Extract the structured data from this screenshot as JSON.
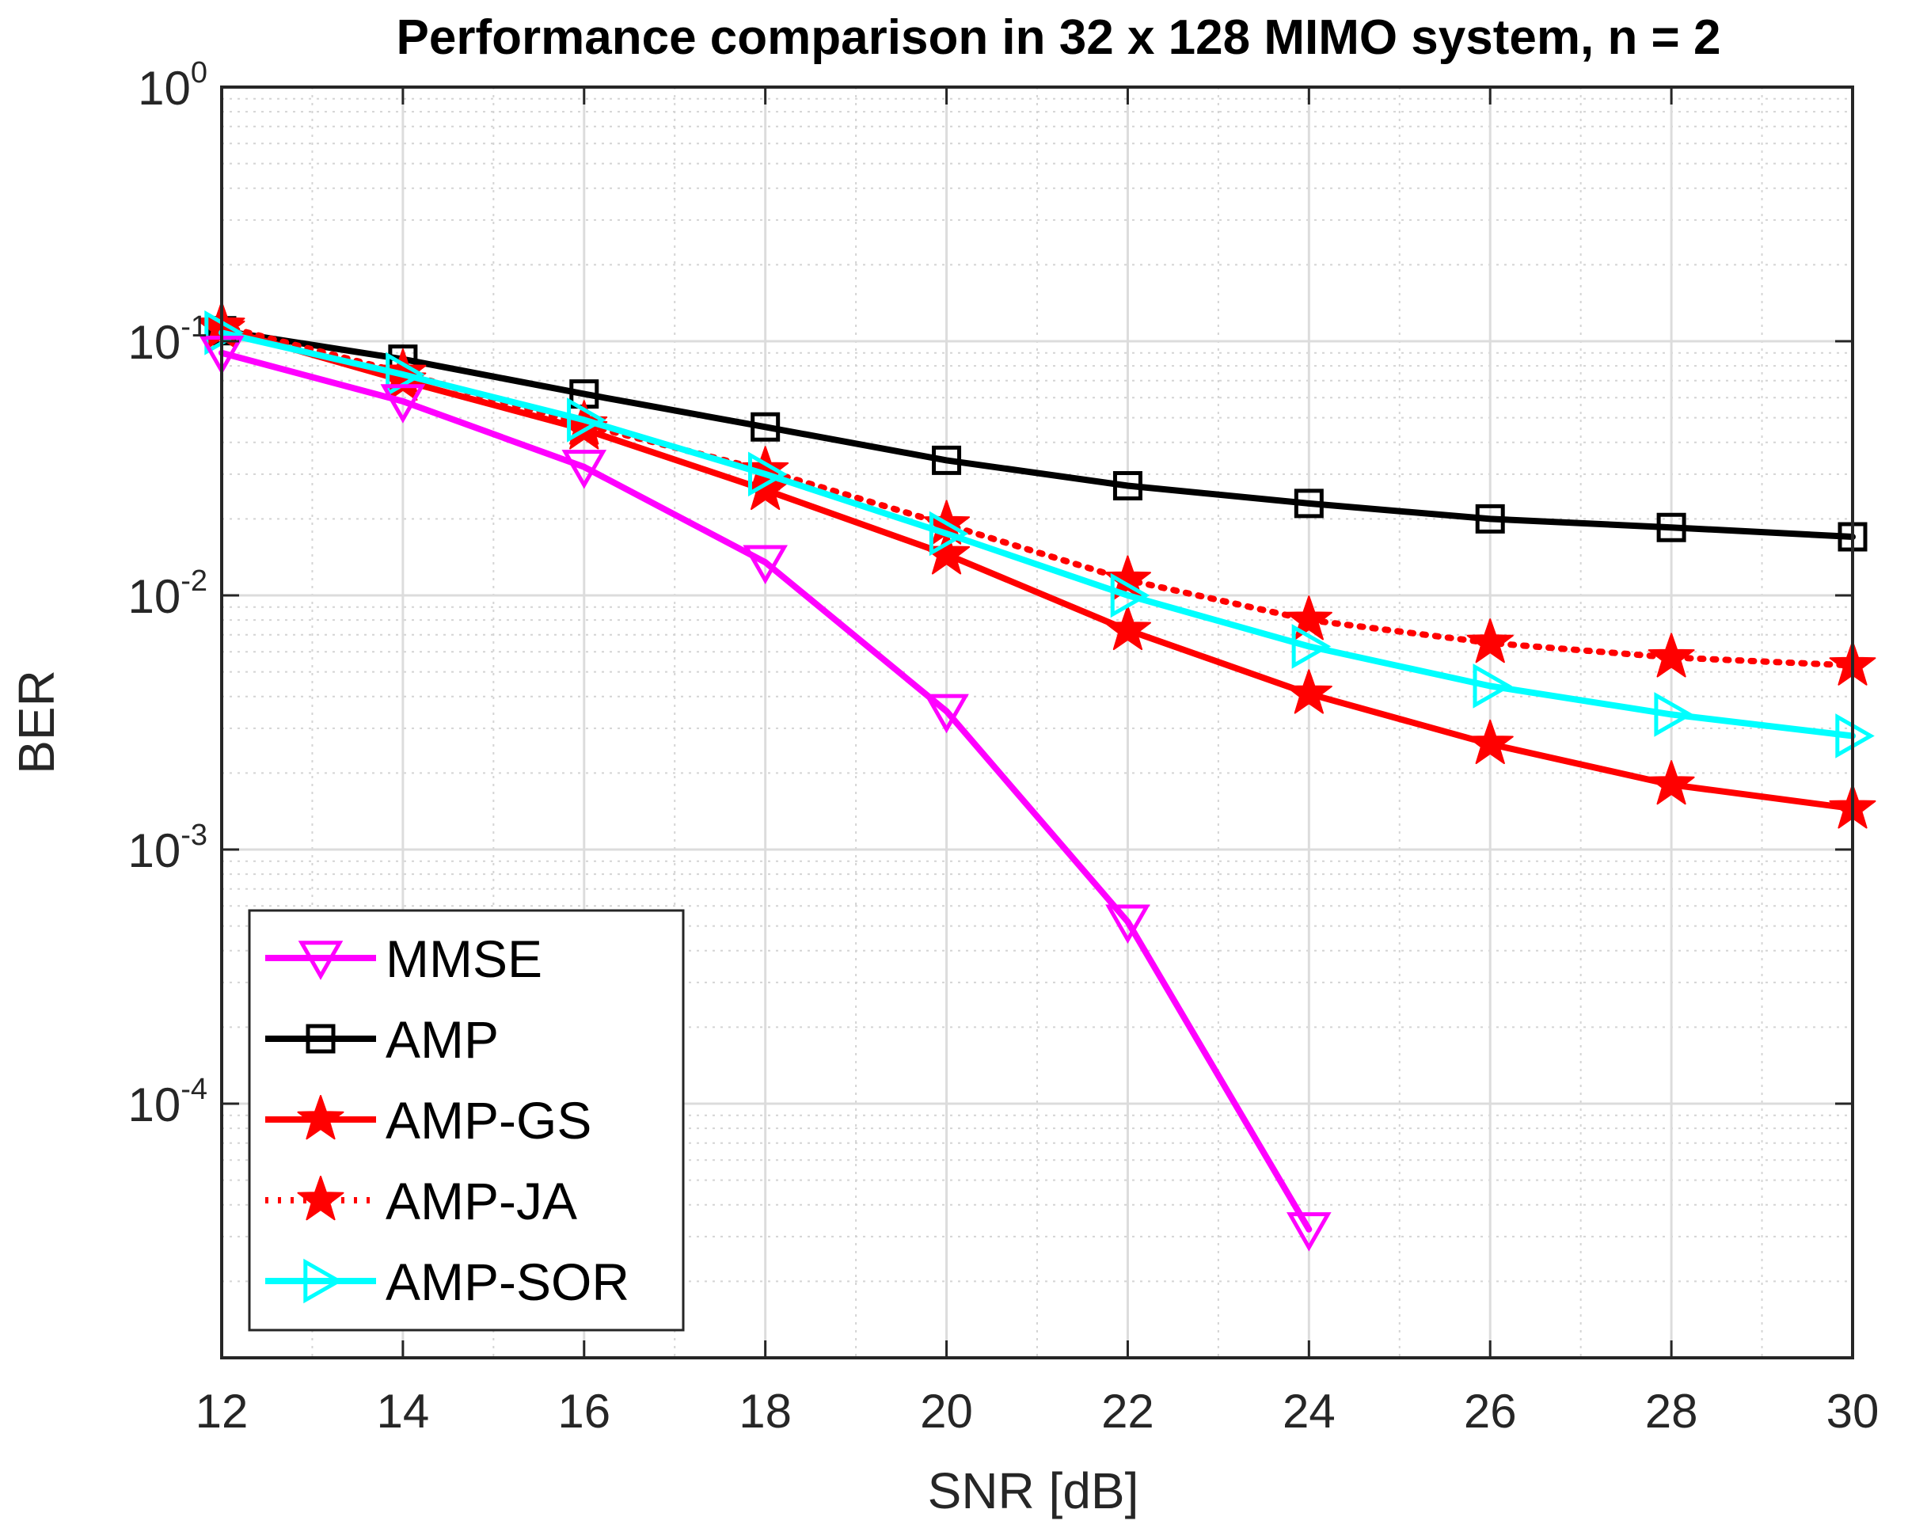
{
  "chart_data": {
    "type": "line",
    "title": "Performance comparison in 32 x 128 MIMO system, n = 2",
    "xlabel": "SNR [dB]",
    "ylabel": "BER",
    "x": [
      12,
      14,
      16,
      18,
      20,
      22,
      24,
      26,
      28,
      30
    ],
    "xlim": [
      12,
      30
    ],
    "ylim": [
      1e-05,
      1
    ],
    "yscale": "log",
    "grid": true,
    "minor_grid": true,
    "xticks": [
      "12",
      "14",
      "16",
      "18",
      "20",
      "22",
      "24",
      "26",
      "28",
      "30"
    ],
    "yticks": [
      {
        "base": "10",
        "exp": "0"
      },
      {
        "base": "10",
        "exp": "-1"
      },
      {
        "base": "10",
        "exp": "-2"
      },
      {
        "base": "10",
        "exp": "-3"
      },
      {
        "base": "10",
        "exp": "-4"
      }
    ],
    "legend_location": "bottom-left",
    "series": [
      {
        "name": "MMSE",
        "color": "#ff00ff",
        "marker": "triangle-down",
        "line": "solid",
        "values": [
          0.09,
          0.058,
          0.032,
          0.0135,
          0.0035,
          0.00052,
          3.2e-05,
          null,
          null,
          null
        ]
      },
      {
        "name": "AMP",
        "color": "#000000",
        "marker": "square",
        "line": "solid",
        "values": [
          0.11,
          0.085,
          0.062,
          0.046,
          0.034,
          0.027,
          0.023,
          0.02,
          0.0185,
          0.017
        ]
      },
      {
        "name": "AMP-GS",
        "color": "#ff0000",
        "marker": "star",
        "line": "solid",
        "values": [
          0.112,
          0.07,
          0.045,
          0.026,
          0.0145,
          0.0073,
          0.0041,
          0.0026,
          0.0018,
          0.00145
        ]
      },
      {
        "name": "AMP-JA",
        "color": "#ff0000",
        "marker": "star",
        "line": "dotted",
        "values": [
          0.115,
          0.075,
          0.047,
          0.031,
          0.019,
          0.0115,
          0.008,
          0.0065,
          0.0057,
          0.0053
        ]
      },
      {
        "name": "AMP-SOR",
        "color": "#00ffff",
        "marker": "triangle-right",
        "line": "solid",
        "values": [
          0.108,
          0.074,
          0.049,
          0.03,
          0.0175,
          0.01,
          0.0063,
          0.0044,
          0.0034,
          0.0028
        ]
      }
    ]
  }
}
